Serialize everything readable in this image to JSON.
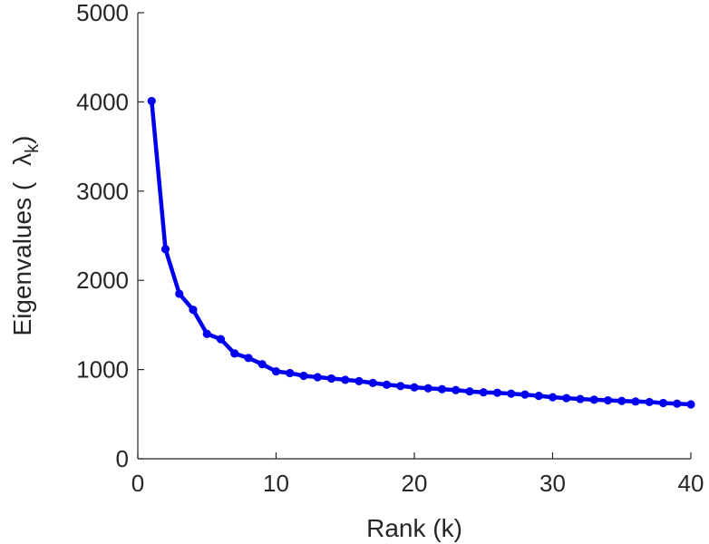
{
  "chart_data": {
    "type": "line",
    "title": "",
    "xlabel": "Rank (k)",
    "ylabel": {
      "prefix": "Eigenvalues (",
      "symbol": "λ",
      "subscript": "k",
      "suffix": ")"
    },
    "xlim": [
      0,
      40
    ],
    "ylim": [
      0,
      5000
    ],
    "xticks": [
      0,
      10,
      20,
      30,
      40
    ],
    "yticks": [
      0,
      1000,
      2000,
      3000,
      4000,
      5000
    ],
    "grid": false,
    "legend": "none",
    "series": [
      {
        "color": "#0000ee",
        "x": [
          1,
          2,
          3,
          4,
          5,
          6,
          7,
          8,
          9,
          10,
          11,
          12,
          13,
          14,
          15,
          16,
          17,
          18,
          19,
          20,
          21,
          22,
          23,
          24,
          25,
          26,
          27,
          28,
          29,
          30,
          31,
          32,
          33,
          34,
          35,
          36,
          37,
          38,
          39,
          40
        ],
        "y": [
          4010,
          2350,
          1850,
          1670,
          1400,
          1340,
          1180,
          1130,
          1060,
          980,
          960,
          930,
          915,
          900,
          885,
          870,
          850,
          830,
          815,
          800,
          790,
          780,
          770,
          755,
          745,
          740,
          730,
          720,
          705,
          690,
          680,
          670,
          662,
          655,
          648,
          642,
          636,
          625,
          618,
          610
        ]
      }
    ]
  }
}
